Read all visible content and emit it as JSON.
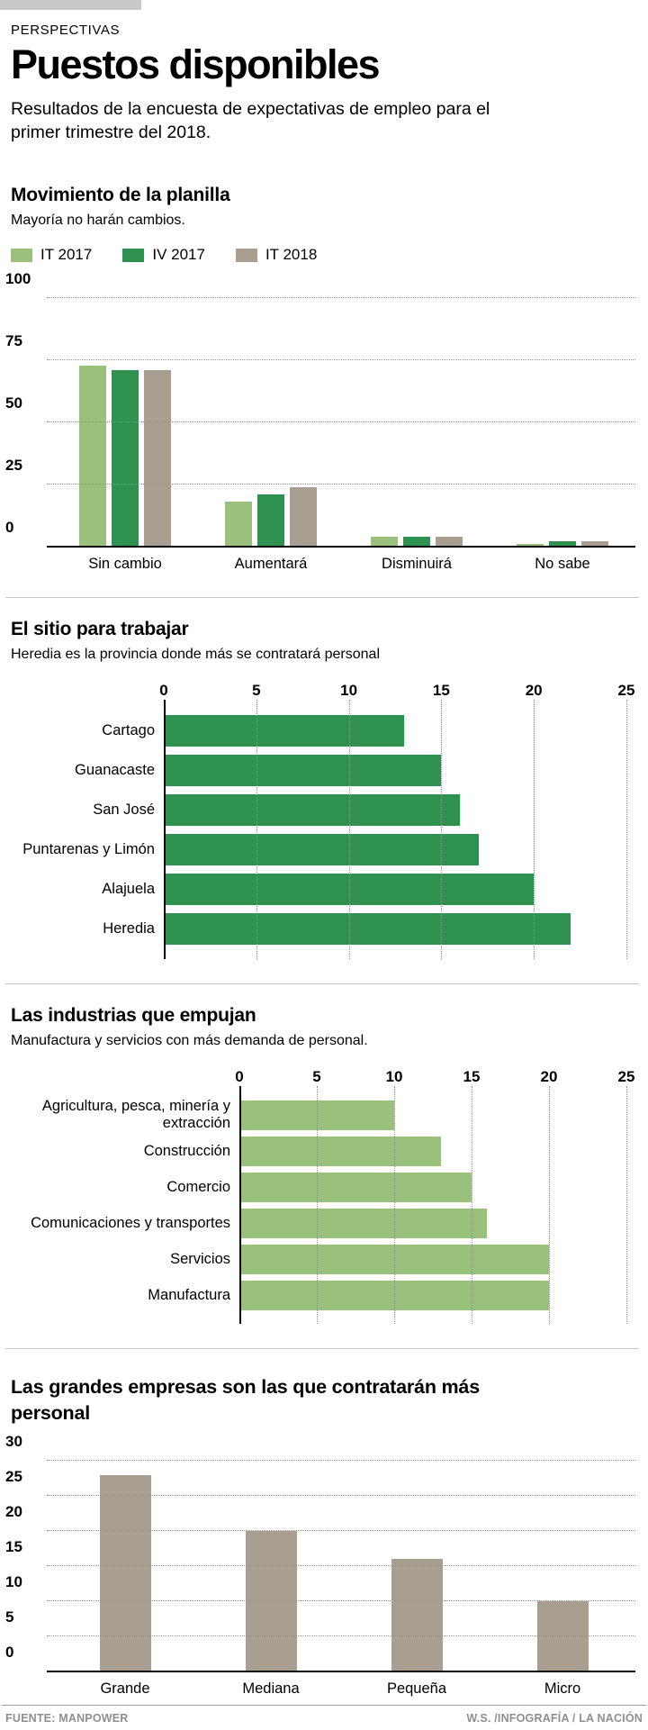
{
  "header": {
    "kicker": "PERSPECTIVAS",
    "title": "Puestos disponibles",
    "subtitle": "Resultados de la encuesta de expectativas de empleo para el primer trimestre del 2018."
  },
  "colors": {
    "light_green": "#9ac17c",
    "dark_green": "#2f9150",
    "taupe": "#a89f91",
    "top_bar_gray": "#c9c9c9",
    "grid_dots": "#8f8f8f",
    "separator": "#c6c6c6",
    "footer_text": "#8f8f8f"
  },
  "footer": {
    "source": "FUENTE: MANPOWER",
    "credit": "W.S. /INFOGRAFÍA / LA NACIÓN"
  },
  "chart_data": [
    {
      "id": "planilla",
      "type": "bar",
      "orientation": "vertical",
      "title": "Movimiento de la planilla",
      "subtitle": "Mayoría no harán cambios.",
      "categories": [
        "Sin cambio",
        "Aumentará",
        "Disminuirá",
        "No sabe"
      ],
      "series": [
        {
          "name": "IT 2017",
          "color_key": "light_green",
          "values": [
            73,
            18,
            4,
            1
          ]
        },
        {
          "name": "IV 2017",
          "color_key": "dark_green",
          "values": [
            71,
            21,
            4,
            2
          ]
        },
        {
          "name": "IT 2018",
          "color_key": "taupe",
          "values": [
            71,
            24,
            4,
            2
          ]
        }
      ],
      "ylim": [
        0,
        100
      ],
      "yticks": [
        0,
        25,
        50,
        75,
        100
      ],
      "grid": "dotted-horizontal",
      "legend_position": "top"
    },
    {
      "id": "sitio",
      "type": "bar",
      "orientation": "horizontal",
      "title": "El sitio para trabajar",
      "subtitle": "Heredia es la provincia donde más se contratará personal",
      "categories": [
        "Cartago",
        "Guanacaste",
        "San José",
        "Puntarenas y Limón",
        "Alajuela",
        "Heredia"
      ],
      "values": [
        13,
        15,
        16,
        17,
        20,
        22
      ],
      "color_key": "dark_green",
      "xlim": [
        0,
        25
      ],
      "xticks": [
        0,
        5,
        10,
        15,
        20,
        25
      ],
      "grid": "dotted-vertical",
      "legend_position": "none"
    },
    {
      "id": "industrias",
      "type": "bar",
      "orientation": "horizontal",
      "title": "Las industrias que empujan",
      "subtitle": "Manufactura y servicios con más demanda de personal.",
      "categories": [
        "Agricultura, pesca, minería y extracción",
        "Construcción",
        "Comercio",
        "Comunicaciones y transportes",
        "Servicios",
        "Manufactura"
      ],
      "values": [
        10,
        13,
        15,
        16,
        20,
        20
      ],
      "color_key": "light_green",
      "xlim": [
        0,
        25
      ],
      "xticks": [
        0,
        5,
        10,
        15,
        20,
        25
      ],
      "grid": "dotted-vertical",
      "legend_position": "none"
    },
    {
      "id": "empresas",
      "type": "bar",
      "orientation": "vertical",
      "title": "Las grandes empresas son las que contratarán más personal",
      "subtitle": "",
      "categories": [
        "Grande",
        "Mediana",
        "Pequeña",
        "Micro"
      ],
      "values": [
        28,
        20,
        16,
        10
      ],
      "color_key": "taupe",
      "ylim": [
        0,
        30
      ],
      "yticks": [
        0,
        5,
        10,
        15,
        20,
        25,
        30
      ],
      "grid": "dotted-horizontal",
      "legend_position": "none"
    }
  ]
}
